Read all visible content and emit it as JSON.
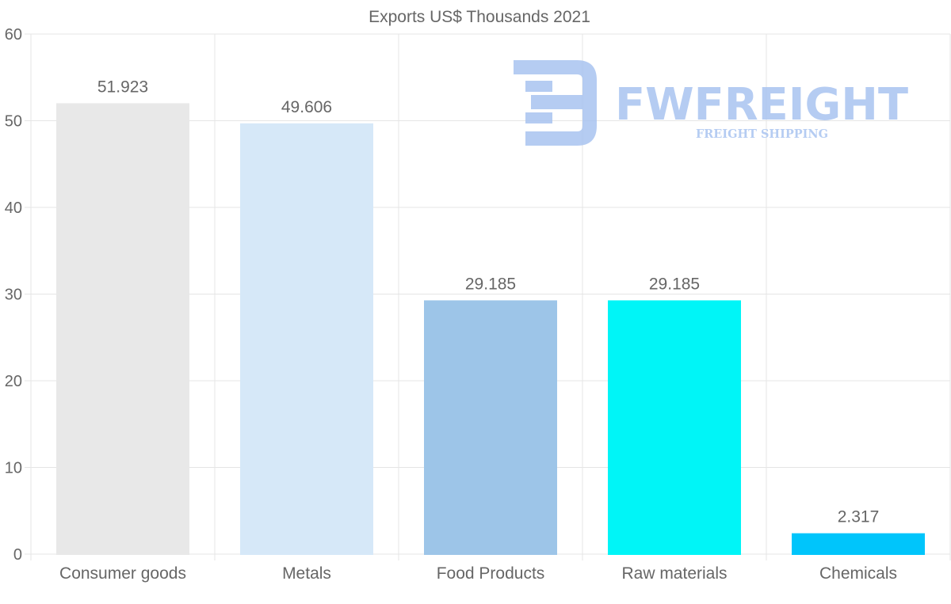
{
  "chart_data": {
    "type": "bar",
    "title": "Exports US$ Thousands 2021",
    "categories": [
      "Consumer goods",
      "Metals",
      "Food Products",
      "Raw materials",
      "Chemicals"
    ],
    "values": [
      51.923,
      49.606,
      29.185,
      29.185,
      2.317
    ],
    "value_labels": [
      "51.923",
      "49.606",
      "29.185",
      "29.185",
      "2.317"
    ],
    "bar_colors": [
      "#e8e8e8",
      "#d6e8f8",
      "#9dc5e8",
      "#00f5f7",
      "#00c5fb"
    ],
    "ylim": [
      0,
      60
    ],
    "yticks": [
      "0",
      "10",
      "20",
      "30",
      "40",
      "50",
      "60"
    ],
    "xlabel": "",
    "ylabel": "",
    "grid": true,
    "legend": "none"
  },
  "watermark": {
    "brand": "FWFREIGHT",
    "tagline": "FREIGHT SHIPPING",
    "color": "#a9c4f0"
  }
}
